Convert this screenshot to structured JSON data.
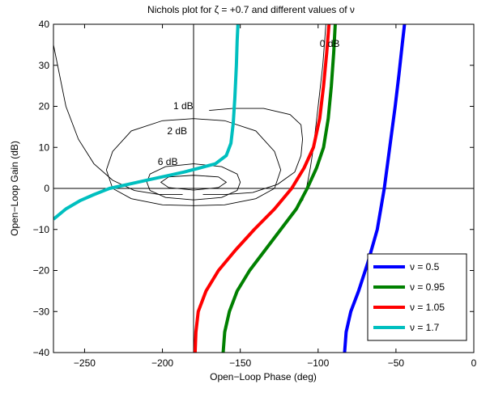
{
  "chart_data": {
    "type": "line",
    "title": "Nichols plot for ζ = +0.7 and different values of ν",
    "xlabel": "Open−Loop Phase (deg)",
    "ylabel": "Open−Loop Gain (dB)",
    "xlim": [
      -270,
      0
    ],
    "ylim": [
      -40,
      40
    ],
    "xticks": [
      -250,
      -200,
      -150,
      -100,
      -50,
      0
    ],
    "xtick_labels": [
      "−250",
      "−200",
      "−150",
      "−100",
      "−50",
      "0"
    ],
    "yticks": [
      -40,
      -30,
      -20,
      -10,
      0,
      10,
      20,
      30,
      40
    ],
    "ytick_labels": [
      "−40",
      "−30",
      "−20",
      "−10",
      "0",
      "10",
      "20",
      "30",
      "40"
    ],
    "grid": false,
    "crosshair": {
      "x": -180,
      "y": 0
    },
    "legend_position": "bottom-right",
    "series": [
      {
        "name": "ν = 0.5",
        "color": "#0000ff",
        "x": [
          -83,
          -82,
          -79,
          -74,
          -68,
          -62,
          -57.5,
          -54,
          -50.5,
          -48,
          -46,
          -44.5
        ],
        "y": [
          -40,
          -35,
          -30,
          -25,
          -18,
          -10,
          0,
          10,
          20,
          28,
          35,
          40
        ]
      },
      {
        "name": "ν = 0.95",
        "color": "#008000",
        "x": [
          -161,
          -160,
          -157,
          -152,
          -144,
          -134,
          -124,
          -114,
          -107,
          -101,
          -96.5,
          -93.5,
          -91.5,
          -90,
          -89
        ],
        "y": [
          -40,
          -35,
          -30,
          -25,
          -20,
          -15,
          -10,
          -5,
          0,
          5,
          10,
          17,
          25,
          33,
          40
        ]
      },
      {
        "name": "ν = 1.05",
        "color": "#ff0000",
        "x": [
          -179,
          -178.5,
          -177,
          -172,
          -164,
          -153,
          -141,
          -128,
          -117,
          -109,
          -103,
          -99,
          -96.5,
          -94.5,
          -93
        ],
        "y": [
          -40,
          -35,
          -30,
          -25,
          -20,
          -15,
          -10,
          -5,
          0,
          5,
          10,
          17,
          25,
          33,
          40
        ]
      },
      {
        "name": "ν = 1.7",
        "color": "#00bfbf",
        "x": [
          -270,
          -262,
          -253,
          -244,
          -234,
          -222,
          -210,
          -198,
          -186,
          -176,
          -166,
          -159,
          -156,
          -154.5,
          -153.5,
          -152.5,
          -152,
          -151.5
        ],
        "y": [
          -7.5,
          -5,
          -3,
          -1.5,
          0,
          1,
          2,
          3,
          4,
          5,
          6,
          8,
          11,
          16,
          22,
          30,
          36,
          40
        ]
      }
    ],
    "contours": [
      {
        "label": "0 dB",
        "x": [
          -95,
          -96,
          -97,
          -98.5,
          -100,
          -101.5,
          -103,
          -105,
          -107.5,
          -110
        ],
        "y": [
          40,
          35,
          30,
          25,
          20,
          15,
          10,
          5,
          0,
          -3
        ]
      },
      {
        "label": "1 dB",
        "x": [
          -270,
          -262,
          -254,
          -244,
          -232,
          -218,
          -202,
          -190,
          -187
        ],
        "y": [
          35,
          20,
          12,
          6,
          2,
          -0.5,
          -1.5,
          -1.5,
          -1.5
        ],
        "x2": [
          -174,
          -160,
          -142,
          -126,
          -115,
          -111,
          -110,
          -111,
          -118,
          -135,
          -155,
          -170
        ],
        "y2": [
          -1.5,
          -1.5,
          -1,
          1,
          4,
          8,
          12,
          15.5,
          18,
          19.5,
          19.5,
          19
        ]
      },
      {
        "label": "2 dB",
        "x": [
          -180,
          -200,
          -220,
          -232,
          -236,
          -232,
          -220,
          -200,
          -180,
          -160,
          -140,
          -128,
          -124,
          -128,
          -140,
          -160,
          -180
        ],
        "y": [
          17,
          16.5,
          14,
          9,
          4.5,
          0,
          -2.5,
          -4,
          -4.2,
          -4,
          -2.5,
          0,
          4.5,
          9,
          14,
          16.5,
          17
        ]
      },
      {
        "label": "6 dB",
        "x": [
          -180,
          -198,
          -208,
          -210,
          -208,
          -198,
          -180,
          -162,
          -152,
          -150,
          -152,
          -162,
          -180
        ],
        "y": [
          6,
          5.3,
          3.5,
          1.5,
          -0.5,
          -2.2,
          -2.8,
          -2.2,
          -0.5,
          1.5,
          3.5,
          5.3,
          6
        ]
      },
      {
        "label": "",
        "x": [
          -180,
          -196,
          -201,
          -196,
          -180,
          -164,
          -159,
          -164,
          -180
        ],
        "y": [
          3.2,
          2.8,
          1.5,
          0.2,
          -0.4,
          0.2,
          1.5,
          2.8,
          3.2
        ]
      }
    ],
    "contour_labels": [
      {
        "text": "0 dB",
        "x": -99,
        "y": 34.5
      },
      {
        "text": "1 dB",
        "x": -193,
        "y": 19.3
      },
      {
        "text": "2 dB",
        "x": -197,
        "y": 13.2
      },
      {
        "text": "6 dB",
        "x": -203,
        "y": 5.7
      }
    ]
  }
}
